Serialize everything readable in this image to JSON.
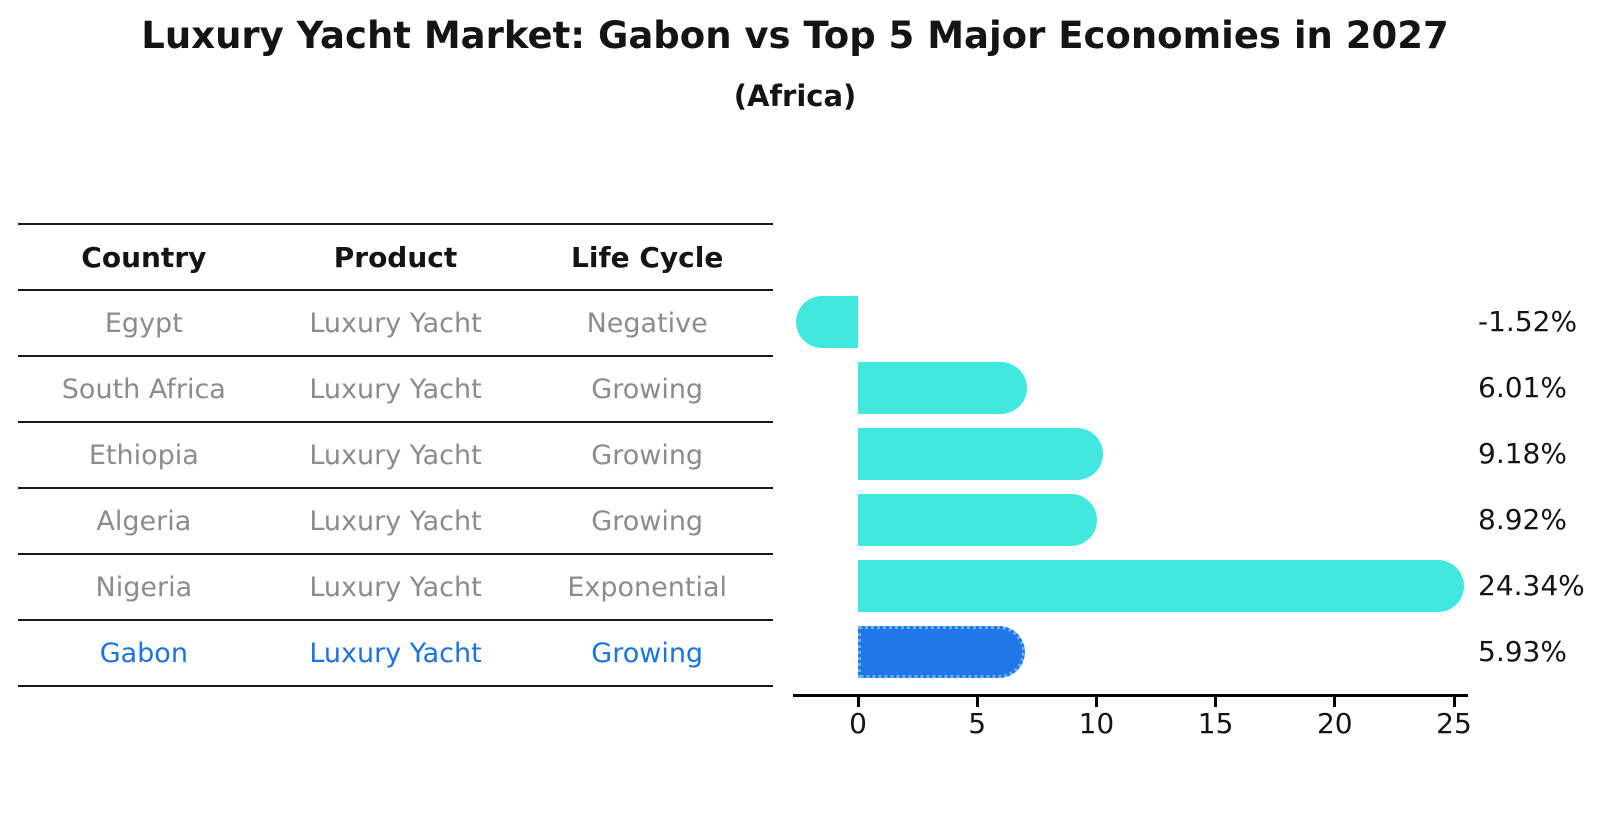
{
  "title": "Luxury Yacht Market: Gabon vs Top 5 Major Economies in 2027",
  "subtitle": "(Africa)",
  "table": {
    "headers": [
      "Country",
      "Product",
      "Life Cycle"
    ],
    "rows": [
      {
        "country": "Egypt",
        "product": "Luxury Yacht",
        "life_cycle": "Negative",
        "highlight": false
      },
      {
        "country": "South Africa",
        "product": "Luxury Yacht",
        "life_cycle": "Growing",
        "highlight": false
      },
      {
        "country": "Ethiopia",
        "product": "Luxury Yacht",
        "life_cycle": "Growing",
        "highlight": false
      },
      {
        "country": "Algeria",
        "product": "Luxury Yacht",
        "life_cycle": "Growing",
        "highlight": false
      },
      {
        "country": "Nigeria",
        "product": "Luxury Yacht",
        "life_cycle": "Exponential",
        "highlight": false
      },
      {
        "country": "Gabon",
        "product": "Luxury Yacht",
        "life_cycle": "Growing",
        "highlight": true
      }
    ]
  },
  "chart_data": {
    "type": "bar",
    "orientation": "horizontal",
    "title": "Luxury Yacht Market: Gabon vs Top 5 Major Economies in 2027",
    "subtitle": "(Africa)",
    "categories": [
      "Egypt",
      "South Africa",
      "Ethiopia",
      "Algeria",
      "Nigeria",
      "Gabon"
    ],
    "values": [
      -1.52,
      6.01,
      9.18,
      8.92,
      24.34,
      5.93
    ],
    "value_labels": [
      "-1.52%",
      "6.01%",
      "9.18%",
      "8.92%",
      "24.34%",
      "5.93%"
    ],
    "x_ticks": [
      0,
      5,
      10,
      15,
      20,
      25
    ],
    "xlim": [
      -2.7,
      25.8
    ],
    "grid": false,
    "legend": "none",
    "bar_color": "#42e8df",
    "highlight_color": "#2277e8",
    "highlight_border_color": "#6fb1f5",
    "highlight_index": 5,
    "text_color": "#141414",
    "muted_text_color": "#8c8c8c",
    "highlight_text_color": "#1b74e0"
  }
}
